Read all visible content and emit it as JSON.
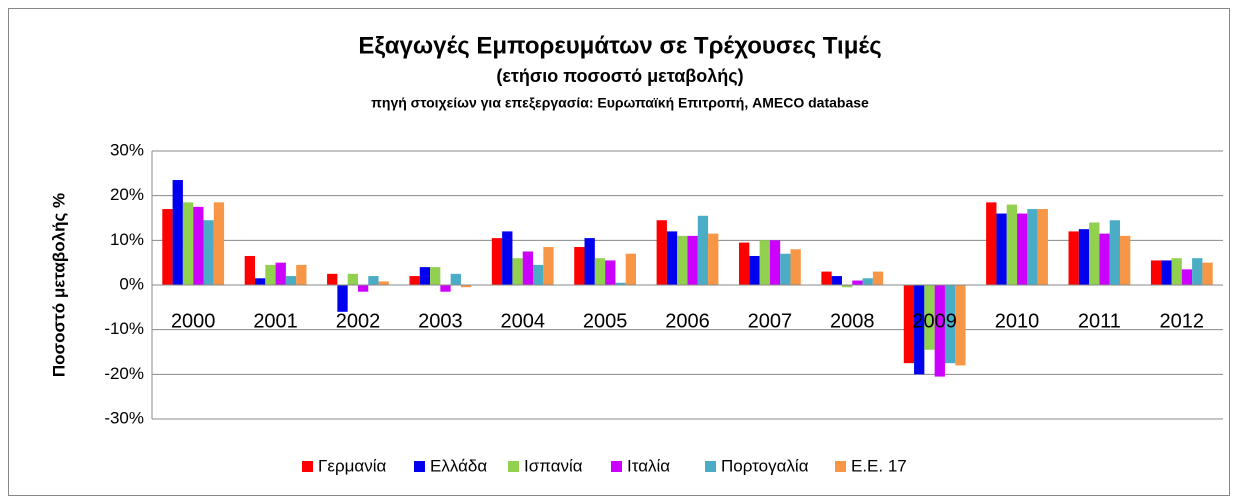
{
  "chart_data": {
    "type": "bar",
    "title": "Εξαγωγές Εμπορευμάτων σε Τρέχουσες Τιμές",
    "subtitle": "(ετήσιο ποσοστό μεταβολής)",
    "source": "πηγή στοιχείων για επεξεργασία: Ευρωπαϊκή Επιτροπή, AMECO database",
    "y_label": "Ποσοστό μεταβολής %",
    "categories": [
      "2000",
      "2001",
      "2002",
      "2003",
      "2004",
      "2005",
      "2006",
      "2007",
      "2008",
      "2009",
      "2010",
      "2011",
      "2012"
    ],
    "series": [
      {
        "name": "Γερμανία",
        "color": "#ff0000",
        "values": [
          17,
          6.5,
          2.5,
          2,
          10.5,
          8.5,
          14.5,
          9.5,
          3,
          -17.5,
          18.5,
          12,
          5.5
        ]
      },
      {
        "name": "Ελλάδα",
        "color": "#0000ee",
        "values": [
          23.5,
          1.5,
          -6,
          4,
          12,
          10.5,
          12,
          6.5,
          2,
          -20,
          16,
          12.5,
          5.5
        ]
      },
      {
        "name": "Ισπανία",
        "color": "#92d050",
        "values": [
          18.5,
          4.5,
          2.5,
          4,
          6,
          6,
          11,
          10,
          -0.5,
          -14.5,
          18,
          14,
          6
        ]
      },
      {
        "name": "Ιταλία",
        "color": "#cc00ff",
        "values": [
          17.5,
          5,
          -1.5,
          -1.5,
          7.5,
          5.5,
          11,
          10,
          1,
          -20.5,
          16,
          11.5,
          3.5
        ]
      },
      {
        "name": "Πορτογαλία",
        "color": "#4bacc6",
        "values": [
          14.5,
          2,
          2,
          2.5,
          4.5,
          0.5,
          15.5,
          7,
          1.5,
          -17.5,
          17,
          14.5,
          6
        ]
      },
      {
        "name": "Ε.Ε. 17",
        "color": "#f79646",
        "values": [
          18.5,
          4.5,
          0.8,
          -0.5,
          8.5,
          7,
          11.5,
          8,
          3,
          -18,
          17,
          11,
          5
        ]
      }
    ],
    "ylim": [
      -30,
      30
    ],
    "yticks": [
      {
        "value": -30,
        "label": "-30%"
      },
      {
        "value": -20,
        "label": "-20%"
      },
      {
        "value": -10,
        "label": "-10%"
      },
      {
        "value": 0,
        "label": "0%"
      },
      {
        "value": 10,
        "label": "10%"
      },
      {
        "value": 20,
        "label": "20%"
      },
      {
        "value": 30,
        "label": "30%"
      }
    ],
    "grid": true
  }
}
